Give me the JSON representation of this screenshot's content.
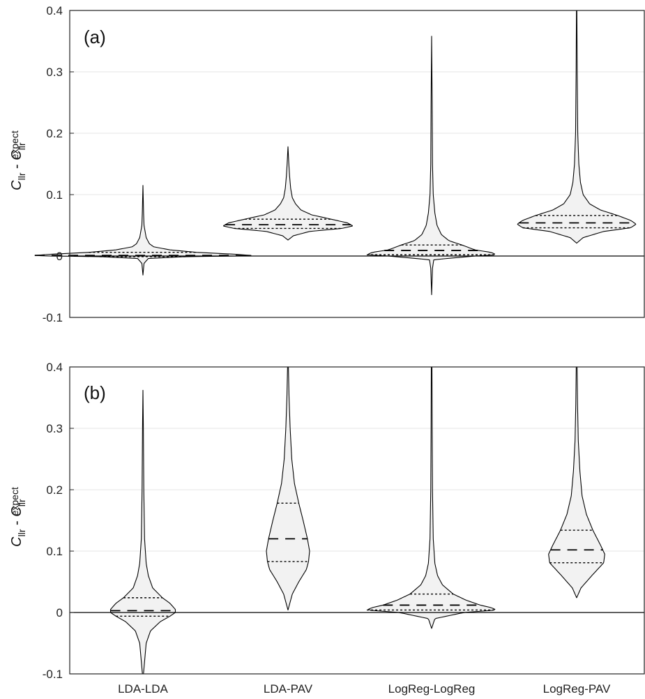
{
  "chart_data": [
    {
      "type": "violin",
      "panel_label": "(a)",
      "ylabel": {
        "main": "C",
        "sub1": "llr",
        "sep": " - ",
        "main2": "C",
        "sub2": "llr",
        "sup2": "expect"
      },
      "ylim": [
        -0.1,
        0.4
      ],
      "yticks": [
        -0.1,
        0,
        0.1,
        0.2,
        0.3,
        0.4
      ],
      "ytick_labels": [
        "-0.1",
        "0",
        "0.1",
        "0.2",
        "0.3",
        "0.4"
      ],
      "grid": true,
      "categories": [
        "LDA-LDA",
        "LDA-PAV",
        "LogReg-LogReg",
        "LogReg-PAV"
      ],
      "violins": [
        {
          "name": "LDA-LDA",
          "min": -0.031,
          "max": 0.115,
          "q1": -0.001,
          "median": 0.001,
          "q3": 0.006,
          "profile": [
            [
              -0.031,
              0.0
            ],
            [
              -0.012,
              0.01
            ],
            [
              -0.004,
              0.05
            ],
            [
              -0.001,
              0.4
            ],
            [
              0.0,
              0.9
            ],
            [
              0.001,
              1.0
            ],
            [
              0.003,
              0.85
            ],
            [
              0.006,
              0.5
            ],
            [
              0.01,
              0.25
            ],
            [
              0.015,
              0.1
            ],
            [
              0.02,
              0.06
            ],
            [
              0.03,
              0.03
            ],
            [
              0.04,
              0.02
            ],
            [
              0.05,
              0.01
            ],
            [
              0.07,
              0.006
            ],
            [
              0.115,
              0.0
            ]
          ]
        },
        {
          "name": "LDA-PAV",
          "min": 0.026,
          "max": 0.178,
          "q1": 0.045,
          "median": 0.051,
          "q3": 0.06,
          "profile": [
            [
              0.026,
              0.0
            ],
            [
              0.033,
              0.05
            ],
            [
              0.04,
              0.2
            ],
            [
              0.045,
              0.5
            ],
            [
              0.049,
              0.6
            ],
            [
              0.054,
              0.55
            ],
            [
              0.06,
              0.4
            ],
            [
              0.067,
              0.22
            ],
            [
              0.075,
              0.12
            ],
            [
              0.085,
              0.07
            ],
            [
              0.095,
              0.04
            ],
            [
              0.11,
              0.025
            ],
            [
              0.13,
              0.015
            ],
            [
              0.15,
              0.008
            ],
            [
              0.178,
              0.0
            ]
          ]
        },
        {
          "name": "LogReg-LogReg",
          "min": -0.063,
          "max": 0.358,
          "q1": 0.002,
          "median": 0.009,
          "q3": 0.018,
          "profile": [
            [
              -0.063,
              0.0
            ],
            [
              -0.02,
              0.008
            ],
            [
              -0.006,
              0.02
            ],
            [
              0.0,
              0.4
            ],
            [
              0.002,
              0.6
            ],
            [
              0.006,
              0.55
            ],
            [
              0.01,
              0.4
            ],
            [
              0.018,
              0.28
            ],
            [
              0.025,
              0.16
            ],
            [
              0.035,
              0.09
            ],
            [
              0.05,
              0.05
            ],
            [
              0.07,
              0.03
            ],
            [
              0.1,
              0.015
            ],
            [
              0.15,
              0.008
            ],
            [
              0.25,
              0.005
            ],
            [
              0.358,
              0.0
            ]
          ]
        },
        {
          "name": "LogReg-PAV",
          "min": 0.021,
          "max": 0.4,
          "q1": 0.046,
          "median": 0.054,
          "q3": 0.066,
          "profile": [
            [
              0.021,
              0.0
            ],
            [
              0.03,
              0.06
            ],
            [
              0.04,
              0.25
            ],
            [
              0.046,
              0.5
            ],
            [
              0.052,
              0.55
            ],
            [
              0.058,
              0.5
            ],
            [
              0.066,
              0.38
            ],
            [
              0.075,
              0.22
            ],
            [
              0.085,
              0.12
            ],
            [
              0.1,
              0.06
            ],
            [
              0.12,
              0.035
            ],
            [
              0.15,
              0.02
            ],
            [
              0.2,
              0.01
            ],
            [
              0.3,
              0.005
            ],
            [
              0.4,
              0.002
            ]
          ]
        }
      ]
    },
    {
      "type": "violin",
      "panel_label": "(b)",
      "ylabel": {
        "main": "C",
        "sub1": "llr",
        "sep": " - ",
        "main2": "C",
        "sub2": "llr",
        "sup2": "expect"
      },
      "ylim": [
        -0.1,
        0.4
      ],
      "yticks": [
        -0.1,
        0,
        0.1,
        0.2,
        0.3,
        0.4
      ],
      "ytick_labels": [
        "-0.1",
        "0",
        "0.1",
        "0.2",
        "0.3",
        "0.4"
      ],
      "grid": true,
      "categories": [
        "LDA-LDA",
        "LDA-PAV",
        "LogReg-LogReg",
        "LogReg-PAV"
      ],
      "violins": [
        {
          "name": "LDA-LDA",
          "min": -0.1,
          "max": 0.362,
          "q1": -0.006,
          "median": 0.003,
          "q3": 0.024,
          "profile": [
            [
              -0.1,
              0.005
            ],
            [
              -0.05,
              0.03
            ],
            [
              -0.03,
              0.07
            ],
            [
              -0.015,
              0.16
            ],
            [
              -0.006,
              0.25
            ],
            [
              0.0,
              0.3
            ],
            [
              0.005,
              0.3
            ],
            [
              0.015,
              0.25
            ],
            [
              0.024,
              0.18
            ],
            [
              0.04,
              0.09
            ],
            [
              0.06,
              0.05
            ],
            [
              0.08,
              0.03
            ],
            [
              0.12,
              0.015
            ],
            [
              0.2,
              0.008
            ],
            [
              0.3,
              0.004
            ],
            [
              0.362,
              0.0
            ]
          ]
        },
        {
          "name": "LDA-PAV",
          "min": 0.004,
          "max": 0.4,
          "q1": 0.083,
          "median": 0.12,
          "q3": 0.178,
          "profile": [
            [
              0.004,
              0.0
            ],
            [
              0.03,
              0.04
            ],
            [
              0.05,
              0.1
            ],
            [
              0.07,
              0.17
            ],
            [
              0.083,
              0.19
            ],
            [
              0.1,
              0.2
            ],
            [
              0.12,
              0.18
            ],
            [
              0.15,
              0.14
            ],
            [
              0.178,
              0.1
            ],
            [
              0.21,
              0.06
            ],
            [
              0.25,
              0.035
            ],
            [
              0.3,
              0.02
            ],
            [
              0.35,
              0.01
            ],
            [
              0.4,
              0.004
            ]
          ]
        },
        {
          "name": "LogReg-LogReg",
          "min": -0.026,
          "max": 0.4,
          "q1": 0.004,
          "median": 0.012,
          "q3": 0.03,
          "profile": [
            [
              -0.026,
              0.0
            ],
            [
              -0.01,
              0.03
            ],
            [
              0.0,
              0.3
            ],
            [
              0.004,
              0.6
            ],
            [
              0.008,
              0.55
            ],
            [
              0.012,
              0.45
            ],
            [
              0.02,
              0.32
            ],
            [
              0.03,
              0.2
            ],
            [
              0.045,
              0.1
            ],
            [
              0.06,
              0.055
            ],
            [
              0.08,
              0.03
            ],
            [
              0.12,
              0.015
            ],
            [
              0.2,
              0.008
            ],
            [
              0.3,
              0.005
            ],
            [
              0.4,
              0.003
            ]
          ]
        },
        {
          "name": "LogReg-PAV",
          "min": 0.024,
          "max": 0.4,
          "q1": 0.081,
          "median": 0.102,
          "q3": 0.134,
          "profile": [
            [
              0.024,
              0.0
            ],
            [
              0.04,
              0.04
            ],
            [
              0.06,
              0.14
            ],
            [
              0.081,
              0.25
            ],
            [
              0.095,
              0.26
            ],
            [
              0.11,
              0.22
            ],
            [
              0.134,
              0.15
            ],
            [
              0.16,
              0.09
            ],
            [
              0.19,
              0.05
            ],
            [
              0.23,
              0.03
            ],
            [
              0.28,
              0.015
            ],
            [
              0.34,
              0.008
            ],
            [
              0.4,
              0.004
            ]
          ]
        }
      ]
    }
  ]
}
